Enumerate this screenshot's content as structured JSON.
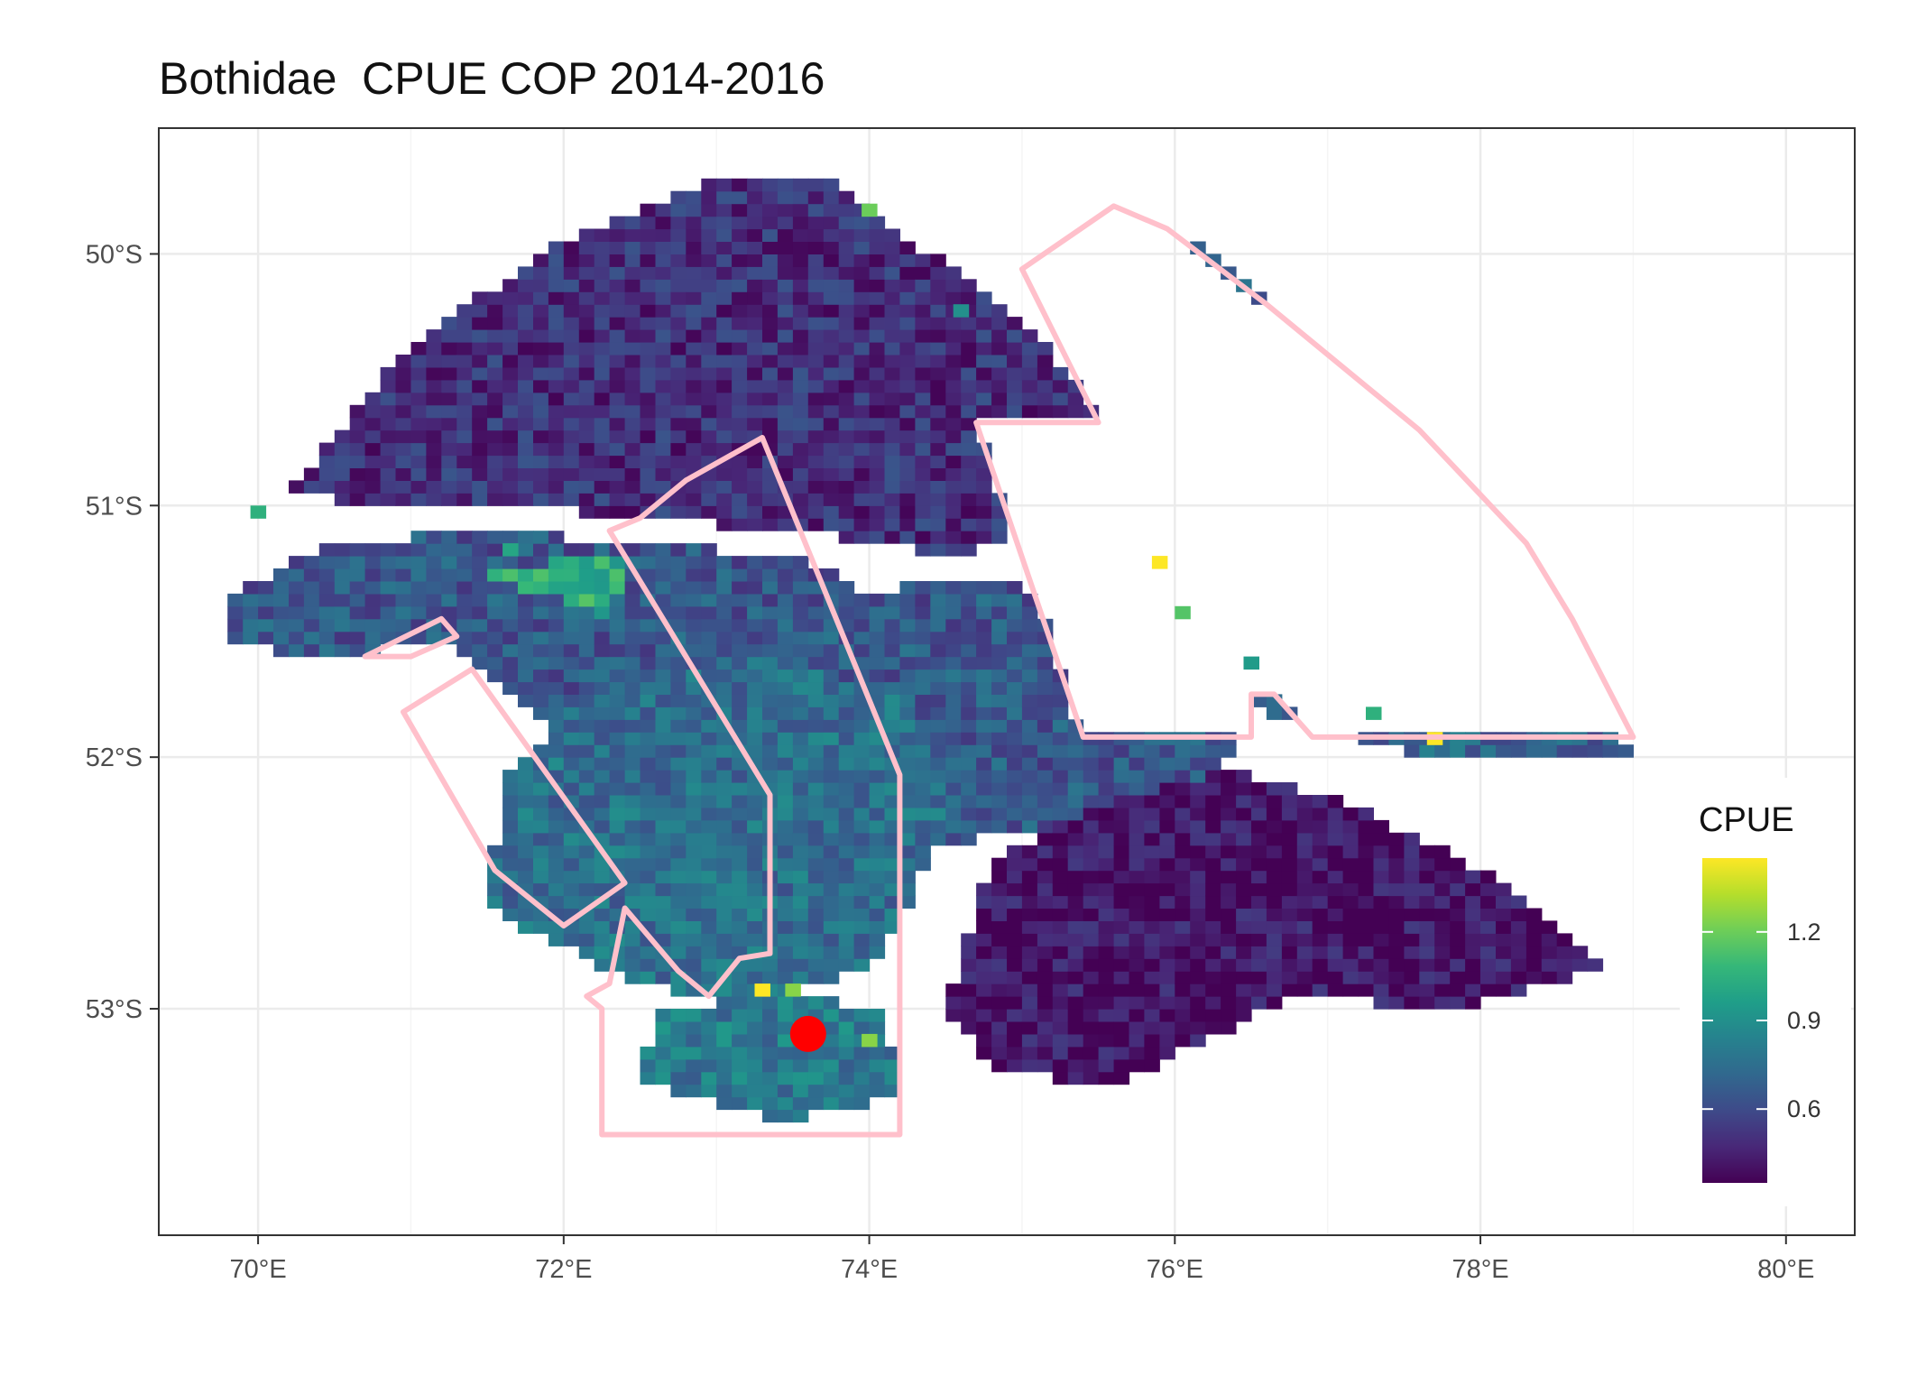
{
  "title": "Bothidae  CPUE COP 2014-2016",
  "chart_data": {
    "type": "heatmap",
    "title": "Bothidae  CPUE COP 2014-2016",
    "xlabel": "",
    "ylabel": "",
    "xlim": [
      69.35,
      80.45
    ],
    "ylim": [
      -53.9,
      -49.5
    ],
    "x_ticks": [
      70,
      72,
      74,
      76,
      78,
      80
    ],
    "x_tick_labels": [
      "70°E",
      "72°E",
      "74°E",
      "76°E",
      "78°E",
      "80°E"
    ],
    "y_ticks": [
      -50,
      -51,
      -52,
      -53
    ],
    "y_tick_labels": [
      "50°S",
      "51°S",
      "52°S",
      "53°S"
    ],
    "grid": true,
    "cell_size_deg": [
      0.1,
      0.05
    ],
    "legend": {
      "title": "CPUE",
      "placement": "right",
      "min": 0.35,
      "max": 1.45,
      "ticks": [
        0.6,
        0.9,
        1.2
      ],
      "tick_labels": [
        "0.6",
        "0.9",
        "1.2"
      ],
      "palette": [
        "#440154",
        "#482878",
        "#3e4a89",
        "#31688e",
        "#26828e",
        "#1f9e89",
        "#35b779",
        "#6ece58",
        "#b5de2b",
        "#fde725"
      ]
    },
    "boundary_color": "#ffc0cb",
    "marker": {
      "lon": 73.6,
      "lat": -53.1,
      "color": "#ff0000"
    },
    "regions": [
      {
        "lon": [
          75.6,
          76.2,
          77.2,
          78.2,
          79.0,
          77.6,
          76.4,
          75.55
        ],
        "lat": [
          -50.25,
          -49.95,
          -50.55,
          -51.2,
          -52.0,
          -52.0,
          -51.8,
          -51.4
        ],
        "level": 0.7
      },
      {
        "lon": [
          70.2,
          71.0,
          72.0,
          73.0,
          73.8,
          74.0,
          74.9,
          75.5,
          75.5,
          74.6,
          73.5,
          72.5,
          71.6,
          70.7
        ],
        "lat": [
          -50.95,
          -50.35,
          -49.95,
          -49.7,
          -49.7,
          -49.85,
          -50.2,
          -50.6,
          -51.0,
          -51.2,
          -51.1,
          -51.05,
          -51.0,
          -51.0
        ],
        "level": 0.5
      },
      {
        "lon": [
          69.8,
          70.5,
          71.5,
          72.5,
          73.5,
          74.0,
          74.5,
          75.4,
          75.8,
          76.2,
          76.4,
          76.0,
          75.0,
          74.4,
          73.8,
          72.8,
          72.0,
          71.2,
          70.4,
          69.8
        ],
        "lat": [
          -51.35,
          -51.15,
          -51.1,
          -51.15,
          -51.2,
          -51.35,
          -51.3,
          -51.35,
          -51.55,
          -51.75,
          -51.95,
          -52.2,
          -52.3,
          -52.35,
          -52.2,
          -52.05,
          -51.9,
          -51.55,
          -51.6,
          -51.55
        ],
        "level": 0.65
      },
      {
        "lon": [
          72.2,
          73.2,
          74.2,
          74.6,
          74.0,
          73.1,
          72.3,
          71.5,
          71.6
        ],
        "lat": [
          -51.7,
          -51.6,
          -51.75,
          -52.2,
          -52.85,
          -53.0,
          -52.85,
          -52.6,
          -52.1
        ],
        "level": 0.75
      },
      {
        "lon": [
          74.8,
          75.5,
          76.3,
          77.2,
          78.0,
          78.5,
          78.8,
          77.8,
          76.8,
          75.6,
          74.8,
          74.5
        ],
        "lat": [
          -52.4,
          -52.2,
          -52.05,
          -52.2,
          -52.45,
          -52.65,
          -52.85,
          -53.0,
          -52.95,
          -53.3,
          -53.25,
          -53.0
        ],
        "level": 0.4
      },
      {
        "lon": [
          72.6,
          73.5,
          74.1,
          74.2,
          73.4,
          72.5
        ],
        "lat": [
          -53.0,
          -52.95,
          -53.0,
          -53.35,
          -53.45,
          -53.3
        ],
        "level": 0.8
      },
      {
        "lon": [
          71.4,
          72.4,
          72.3
        ],
        "lat": [
          -51.25,
          -51.2,
          -51.45
        ],
        "level": 1.05
      }
    ],
    "spots": [
      {
        "lon": 73.25,
        "lat": -52.95,
        "level": 1.45
      },
      {
        "lon": 73.45,
        "lat": -52.95,
        "level": 1.25
      },
      {
        "lon": 73.95,
        "lat": -53.15,
        "level": 1.25
      },
      {
        "lon": 75.85,
        "lat": -51.25,
        "level": 1.45
      },
      {
        "lon": 77.65,
        "lat": -51.95,
        "level": 1.45
      },
      {
        "lon": 73.95,
        "lat": -49.85,
        "level": 1.2
      },
      {
        "lon": 76.0,
        "lat": -51.45,
        "level": 1.15
      },
      {
        "lon": 71.6,
        "lat": -51.2,
        "level": 1.0
      },
      {
        "lon": 69.95,
        "lat": -51.05,
        "level": 1.05
      },
      {
        "lon": 77.25,
        "lat": -51.85,
        "level": 1.05
      },
      {
        "lon": 76.45,
        "lat": -51.65,
        "level": 0.95
      },
      {
        "lon": 74.55,
        "lat": -50.25,
        "level": 0.9
      }
    ],
    "boundaries": [
      {
        "lon": [
          75.0,
          75.6,
          75.95,
          76.6,
          77.6,
          78.3,
          78.6,
          79.0,
          76.9,
          76.65,
          76.5,
          76.5,
          76.4,
          75.4,
          74.7,
          75.5,
          75.0
        ],
        "lat": [
          -50.06,
          -49.81,
          -49.9,
          -50.2,
          -50.7,
          -51.15,
          -51.45,
          -51.92,
          -51.92,
          -51.75,
          -51.75,
          -51.92,
          -51.92,
          -51.92,
          -50.67,
          -50.67,
          -50.06
        ]
      },
      {
        "lon": [
          72.3,
          72.5,
          72.8,
          73.3,
          74.2,
          74.2,
          72.25,
          72.25,
          72.15,
          72.3,
          72.4,
          72.75,
          72.95,
          73.15,
          73.35,
          73.35,
          72.3
        ],
        "lat": [
          -51.1,
          -51.05,
          -50.9,
          -50.73,
          -52.07,
          -53.5,
          -53.5,
          -53.0,
          -52.95,
          -52.9,
          -52.6,
          -52.85,
          -52.95,
          -52.8,
          -52.78,
          -52.15,
          -51.1
        ]
      },
      {
        "lon": [
          70.7,
          71.2,
          71.3,
          71.0,
          70.7
        ],
        "lat": [
          -51.6,
          -51.45,
          -51.52,
          -51.6,
          -51.6
        ]
      },
      {
        "lon": [
          70.95,
          71.4,
          72.4,
          72.0,
          71.55,
          70.95
        ],
        "lat": [
          -51.82,
          -51.65,
          -52.5,
          -52.67,
          -52.45,
          -51.82
        ]
      }
    ]
  }
}
